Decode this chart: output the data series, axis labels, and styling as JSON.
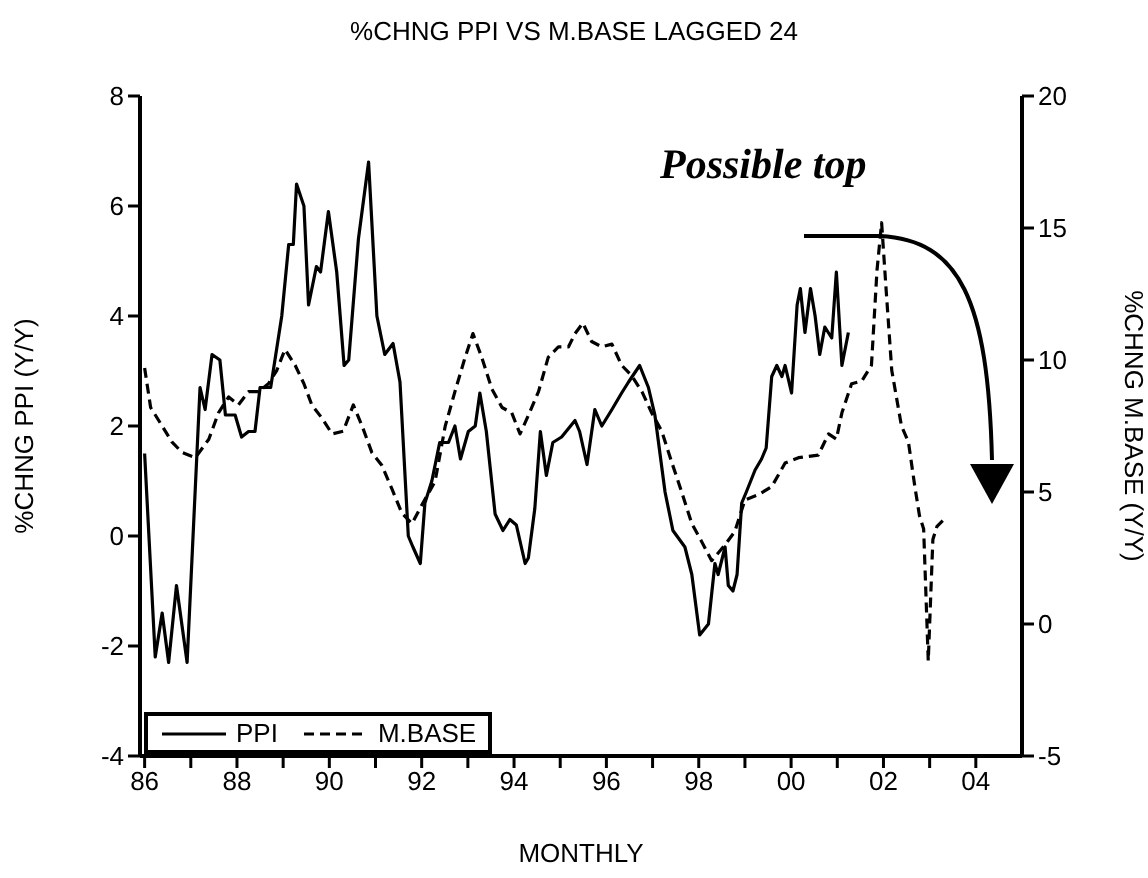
{
  "chart_data": {
    "type": "line",
    "title": "%CHNG PPI VS M.BASE LAGGED 24",
    "xlabel": "MONTHLY",
    "ylabel": "%CHNG PPI (Y/Y)",
    "y2label": "%CHNG M.BASE (Y/Y)",
    "annotations": [
      "Possible top"
    ],
    "series": [
      {
        "name": "PPI",
        "color": "#000000",
        "line_style": "solid",
        "x": [
          1986.0,
          1986.23,
          1986.38,
          1986.52,
          1986.69,
          1986.92,
          1987.2,
          1987.31,
          1987.46,
          1987.63,
          1987.75,
          1987.96,
          1988.1,
          1988.25,
          1988.39,
          1988.5,
          1988.73,
          1988.97,
          1989.12,
          1989.22,
          1989.29,
          1989.45,
          1989.55,
          1989.72,
          1989.81,
          1989.98,
          1990.16,
          1990.32,
          1990.42,
          1990.63,
          1990.85,
          1991.03,
          1991.2,
          1991.38,
          1991.53,
          1991.71,
          1991.81,
          1991.97,
          1992.07,
          1992.22,
          1992.39,
          1992.58,
          1992.72,
          1992.84,
          1993.01,
          1993.16,
          1993.26,
          1993.4,
          1993.59,
          1993.76,
          1993.91,
          1994.05,
          1994.24,
          1994.31,
          1994.45,
          1994.57,
          1994.7,
          1994.84,
          1995.03,
          1995.32,
          1995.42,
          1995.58,
          1995.75,
          1995.9,
          1996.12,
          1996.33,
          1996.48,
          1996.72,
          1996.91,
          1997.05,
          1997.27,
          1997.44,
          1997.7,
          1997.85,
          1998.02,
          1998.21,
          1998.35,
          1998.42,
          1998.57,
          1998.64,
          1998.74,
          1998.83,
          1998.93,
          1999.03,
          1999.22,
          1999.36,
          1999.46,
          1999.58,
          1999.69,
          1999.8,
          1999.87,
          2000.01,
          2000.13,
          2000.2,
          2000.3,
          2000.42,
          2000.52,
          2000.62,
          2000.73,
          2000.88,
          2000.98,
          2001.1,
          2001.24
        ],
        "values": [
          1.5,
          -2.2,
          -1.4,
          -2.3,
          -0.9,
          -2.3,
          2.7,
          2.3,
          3.3,
          3.2,
          2.2,
          2.2,
          1.8,
          1.9,
          1.9,
          2.7,
          2.7,
          4.0,
          5.3,
          5.3,
          6.4,
          6.0,
          4.2,
          4.9,
          4.8,
          5.9,
          4.8,
          3.1,
          3.2,
          5.4,
          6.8,
          4.0,
          3.3,
          3.5,
          2.8,
          0.0,
          -0.2,
          -0.5,
          0.6,
          1.0,
          1.7,
          1.7,
          2.0,
          1.4,
          1.9,
          2.0,
          2.6,
          1.9,
          0.4,
          0.1,
          0.3,
          0.2,
          -0.5,
          -0.4,
          0.5,
          1.9,
          1.1,
          1.7,
          1.8,
          2.1,
          1.9,
          1.3,
          2.3,
          2.0,
          2.3,
          2.6,
          2.8,
          3.1,
          2.7,
          2.2,
          0.8,
          0.1,
          -0.2,
          -0.7,
          -1.8,
          -1.6,
          -0.5,
          -0.7,
          -0.2,
          -0.9,
          -1.0,
          -0.7,
          0.6,
          0.8,
          1.2,
          1.4,
          1.6,
          2.9,
          3.1,
          2.9,
          3.1,
          2.6,
          4.2,
          4.5,
          3.7,
          4.5,
          4.0,
          3.3,
          3.8,
          3.6,
          4.8,
          3.1,
          3.7
        ]
      },
      {
        "name": "M.BASE",
        "color": "#000000",
        "line_style": "dashed",
        "axis": "y2",
        "x": [
          1986.0,
          1986.13,
          1986.38,
          1986.59,
          1986.81,
          1987.1,
          1987.39,
          1987.6,
          1987.82,
          1988.03,
          1988.25,
          1988.47,
          1988.68,
          1988.86,
          1989.04,
          1989.26,
          1989.45,
          1989.62,
          1989.84,
          1990.06,
          1990.3,
          1990.52,
          1990.71,
          1990.92,
          1991.14,
          1991.36,
          1991.57,
          1991.79,
          1992.0,
          1992.29,
          1992.51,
          1992.72,
          1992.94,
          1993.11,
          1993.3,
          1993.52,
          1993.74,
          1993.95,
          1994.13,
          1994.31,
          1994.53,
          1994.74,
          1994.96,
          1995.18,
          1995.32,
          1995.49,
          1995.68,
          1995.9,
          1996.12,
          1996.33,
          1996.55,
          1996.77,
          1996.98,
          1997.2,
          1997.42,
          1997.63,
          1997.85,
          1998.07,
          1998.28,
          1998.57,
          1998.78,
          1999.0,
          1999.29,
          1999.58,
          1999.87,
          2000.16,
          2000.59,
          2000.81,
          2000.98,
          2001.1,
          2001.31,
          2001.53,
          2001.74,
          2001.86,
          2001.96,
          2002.06,
          2002.18,
          2002.39,
          2002.54,
          2002.68,
          2002.78,
          2002.87,
          2002.97,
          2003.07,
          2003.16,
          2003.33
        ],
        "values": [
          9.7,
          8.2,
          7.5,
          6.9,
          6.5,
          6.3,
          7.0,
          8.0,
          8.6,
          8.3,
          8.8,
          8.8,
          9.1,
          9.6,
          10.4,
          9.8,
          9.1,
          8.3,
          7.8,
          7.2,
          7.3,
          8.3,
          7.5,
          6.5,
          6.0,
          5.1,
          4.2,
          3.8,
          4.5,
          5.4,
          7.5,
          8.8,
          10.1,
          11.0,
          10.1,
          8.9,
          8.2,
          8.0,
          7.2,
          7.9,
          8.8,
          10.1,
          10.5,
          10.5,
          11.0,
          11.4,
          10.7,
          10.5,
          10.6,
          9.8,
          9.4,
          8.8,
          8.0,
          7.3,
          6.1,
          5.0,
          3.8,
          3.1,
          2.4,
          3.0,
          3.5,
          4.7,
          4.9,
          5.2,
          6.1,
          6.3,
          6.4,
          7.2,
          7.0,
          8.0,
          9.1,
          9.2,
          9.8,
          13.4,
          15.2,
          12.6,
          9.6,
          7.5,
          6.9,
          5.2,
          4.1,
          3.6,
          -1.4,
          3.2,
          3.7,
          4.0
        ]
      }
    ],
    "xlim": [
      1985.9,
      2005
    ],
    "xticks": [
      {
        "value": 1986,
        "label": "86"
      },
      {
        "value": 1987,
        "label": null
      },
      {
        "value": 1988,
        "label": "88"
      },
      {
        "value": 1989,
        "label": null
      },
      {
        "value": 1990,
        "label": "90"
      },
      {
        "value": 1991,
        "label": null
      },
      {
        "value": 1992,
        "label": "92"
      },
      {
        "value": 1993,
        "label": null
      },
      {
        "value": 1994,
        "label": "94"
      },
      {
        "value": 1995,
        "label": null
      },
      {
        "value": 1996,
        "label": "96"
      },
      {
        "value": 1997,
        "label": null
      },
      {
        "value": 1998,
        "label": "98"
      },
      {
        "value": 1999,
        "label": null
      },
      {
        "value": 2000,
        "label": "00"
      },
      {
        "value": 2001,
        "label": null
      },
      {
        "value": 2002,
        "label": "02"
      },
      {
        "value": 2003,
        "label": null
      },
      {
        "value": 2004,
        "label": "04"
      }
    ],
    "ylim": [
      -4,
      8
    ],
    "yticks": [
      -4,
      -2,
      0,
      2,
      4,
      6,
      8
    ],
    "y2lim": [
      -5,
      20
    ],
    "y2ticks": [
      -5,
      0,
      5,
      10,
      15,
      20
    ],
    "grid": false,
    "legend": "bottom left",
    "marker": "none"
  }
}
